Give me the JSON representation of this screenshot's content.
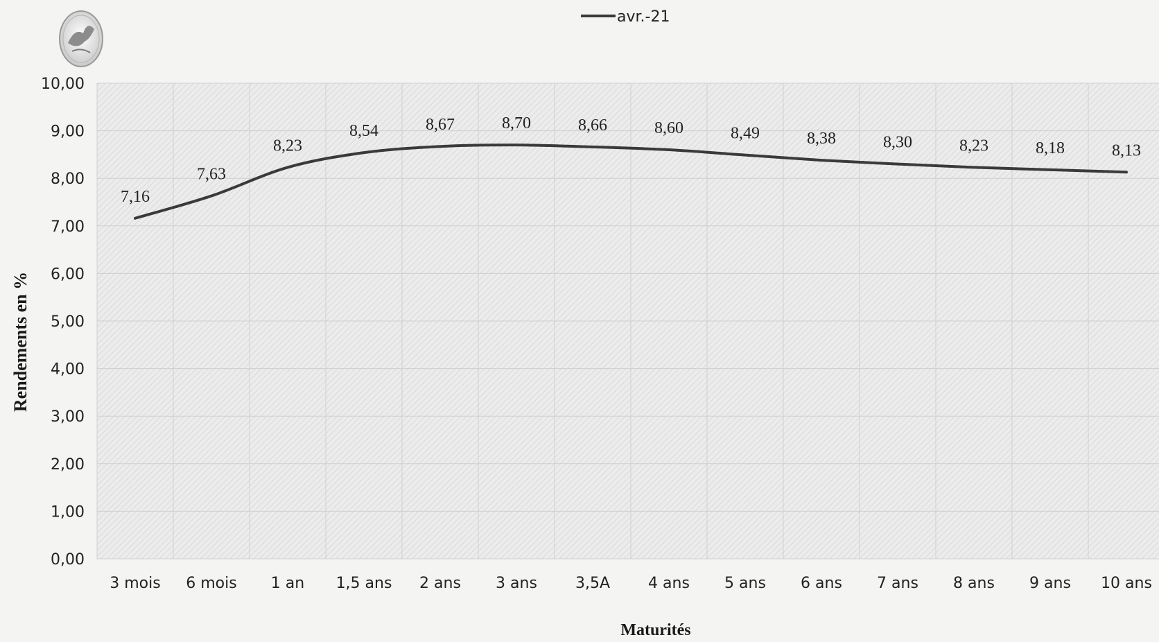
{
  "chart_data": {
    "type": "line",
    "categories": [
      "3 mois",
      "6 mois",
      "1 an",
      "1,5 ans",
      "2 ans",
      "3 ans",
      "3,5A",
      "4 ans",
      "5 ans",
      "6 ans",
      "7 ans",
      "8 ans",
      "9 ans",
      "10 ans"
    ],
    "series": [
      {
        "name": "avr.-21",
        "values": [
          7.16,
          7.63,
          8.23,
          8.54,
          8.67,
          8.7,
          8.66,
          8.6,
          8.49,
          8.38,
          8.3,
          8.23,
          8.18,
          8.13
        ],
        "labels": [
          "7,16",
          "7,63",
          "8,23",
          "8,54",
          "8,67",
          "8,70",
          "8,66",
          "8,60",
          "8,49",
          "8,38",
          "8,30",
          "8,23",
          "8,18",
          "8,13"
        ]
      }
    ],
    "yticks": [
      "0,00",
      "1,00",
      "2,00",
      "3,00",
      "4,00",
      "5,00",
      "6,00",
      "7,00",
      "8,00",
      "9,00",
      "10,00"
    ],
    "ylim": [
      0,
      10
    ],
    "xlabel": "Maturités",
    "ylabel": "Rendements en %",
    "legend_position": "top-center",
    "grid": true,
    "colors": {
      "line": "#3a3a3a",
      "grid": "#cfcfcf",
      "plot_bg": "#e9e9e9"
    }
  }
}
